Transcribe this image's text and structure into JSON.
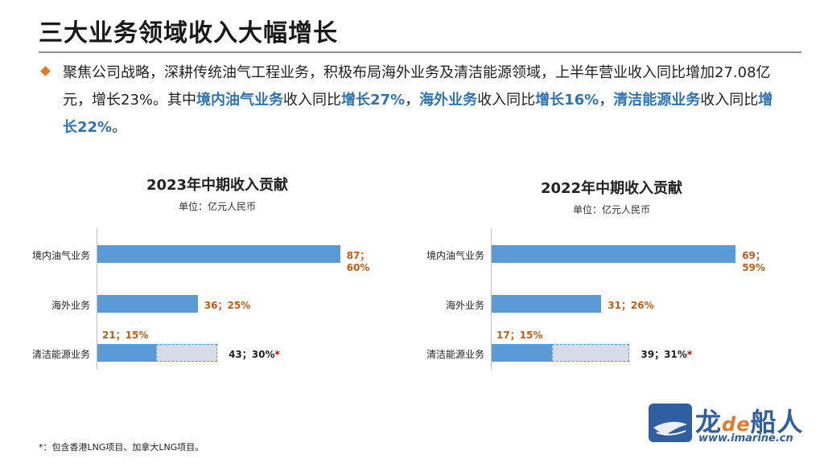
{
  "slide": {
    "title": "三大业务领域收入大幅增长",
    "para_parts": [
      {
        "text": "聚焦公司战略，深耕传统油气工程业务，积极布局海外业务及清洁能源领域，上半年营业收入同比增加27.08亿元，增长23%。其中",
        "hl": false
      },
      {
        "text": "境内油气业务",
        "hl": true
      },
      {
        "text": "收入同比",
        "hl": false
      },
      {
        "text": "增长27%",
        "hl": true
      },
      {
        "text": "，",
        "hl": false
      },
      {
        "text": "海外业务",
        "hl": true
      },
      {
        "text": "收入同比",
        "hl": false
      },
      {
        "text": "增长16%",
        "hl": true
      },
      {
        "text": "，",
        "hl": false
      },
      {
        "text": "清洁能源业务",
        "hl": true
      },
      {
        "text": "收入同比",
        "hl": false
      },
      {
        "text": "增长22%",
        "hl": true
      },
      {
        "text": "。",
        "hl": false
      }
    ],
    "footnote": "*：包含香港LNG项目、加拿大LNG项目。",
    "logo": {
      "text_a": "龙",
      "text_de": "de",
      "text_b": "船人",
      "url": "www.imarine.cn"
    },
    "colors": {
      "bar": "#5b9bd5",
      "bar_ext": "#d6dce5",
      "label": "#c55a11",
      "highlight": "#2e74b5",
      "bullet": "#e07b2a"
    }
  },
  "chart_data": [
    {
      "type": "bar",
      "orientation": "horizontal",
      "title": "2023年中期收入贡献",
      "unit": "单位：亿元人民币",
      "categories": [
        "境内油气业务",
        "海外业务",
        "清洁能源业务"
      ],
      "values": [
        87,
        36,
        21
      ],
      "labels": [
        "87；60%",
        "36；25%",
        "21；15%"
      ],
      "extended": {
        "category": "清洁能源业务",
        "value": 43,
        "label": "43；30%",
        "mark": "*"
      },
      "xlim": [
        0,
        90
      ]
    },
    {
      "type": "bar",
      "orientation": "horizontal",
      "title": "2022年中期收入贡献",
      "unit": "单位：亿元人民币",
      "categories": [
        "境内油气业务",
        "海外业务",
        "清洁能源业务"
      ],
      "values": [
        69,
        31,
        17
      ],
      "labels": [
        "69；59%",
        "31；26%",
        "17；15%"
      ],
      "extended": {
        "category": "清洁能源业务",
        "value": 39,
        "label": "39；31%",
        "mark": "*"
      },
      "xlim": [
        0,
        71
      ]
    }
  ]
}
